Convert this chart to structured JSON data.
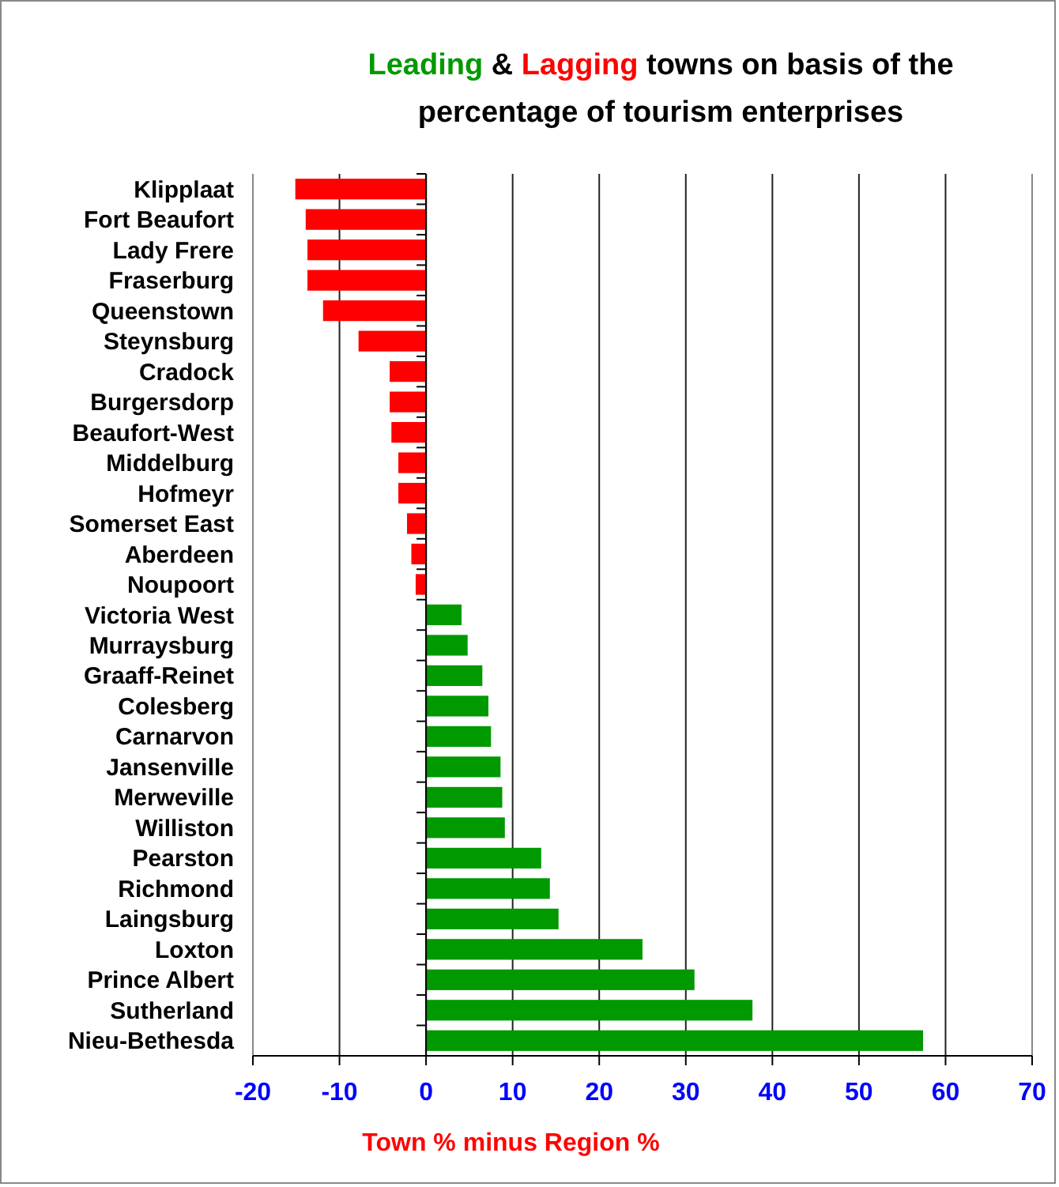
{
  "chart_data": {
    "type": "bar",
    "orientation": "horizontal",
    "title": "Leading & Lagging towns on basis of the percentage of tourism enterprises",
    "xlabel": "Town % minus Region %",
    "categories": [
      "Klipplaat",
      "Fort Beaufort",
      "Lady Frere",
      "Fraserburg",
      "Queenstown",
      "Steynsburg",
      "Cradock",
      "Burgersdorp",
      "Beaufort-West",
      "Middelburg",
      "Hofmeyr",
      "Somerset East",
      "Aberdeen",
      "Noupoort",
      "Victoria West",
      "Murraysburg",
      "Graaff-Reinet",
      "Colesberg",
      "Carnarvon",
      "Jansenville",
      "Merweville",
      "Williston",
      "Pearston",
      "Richmond",
      "Laingsburg",
      "Loxton",
      "Prince Albert",
      "Sutherland",
      "Nieu-Bethesda"
    ],
    "values": [
      -15.1,
      -13.9,
      -13.7,
      -13.7,
      -11.9,
      -7.8,
      -4.2,
      -4.2,
      -4.0,
      -3.2,
      -3.2,
      -2.2,
      -1.7,
      -1.2,
      4.1,
      4.8,
      6.5,
      7.2,
      7.5,
      8.6,
      8.8,
      9.1,
      13.3,
      14.3,
      15.3,
      25.0,
      31.0,
      37.7,
      57.4
    ],
    "colors": [
      "#ff0000",
      "#ff0000",
      "#ff0000",
      "#ff0000",
      "#ff0000",
      "#ff0000",
      "#ff0000",
      "#ff0000",
      "#ff0000",
      "#ff0000",
      "#ff0000",
      "#ff0000",
      "#ff0000",
      "#ff0000",
      "#009900",
      "#009900",
      "#009900",
      "#009900",
      "#009900",
      "#009900",
      "#009900",
      "#009900",
      "#009900",
      "#009900",
      "#009900",
      "#009900",
      "#009900",
      "#009900",
      "#009900"
    ],
    "xlim": [
      -20,
      70
    ],
    "xticks": [
      -20,
      -10,
      0,
      10,
      20,
      30,
      40,
      50,
      60,
      70
    ],
    "grid": "x"
  }
}
